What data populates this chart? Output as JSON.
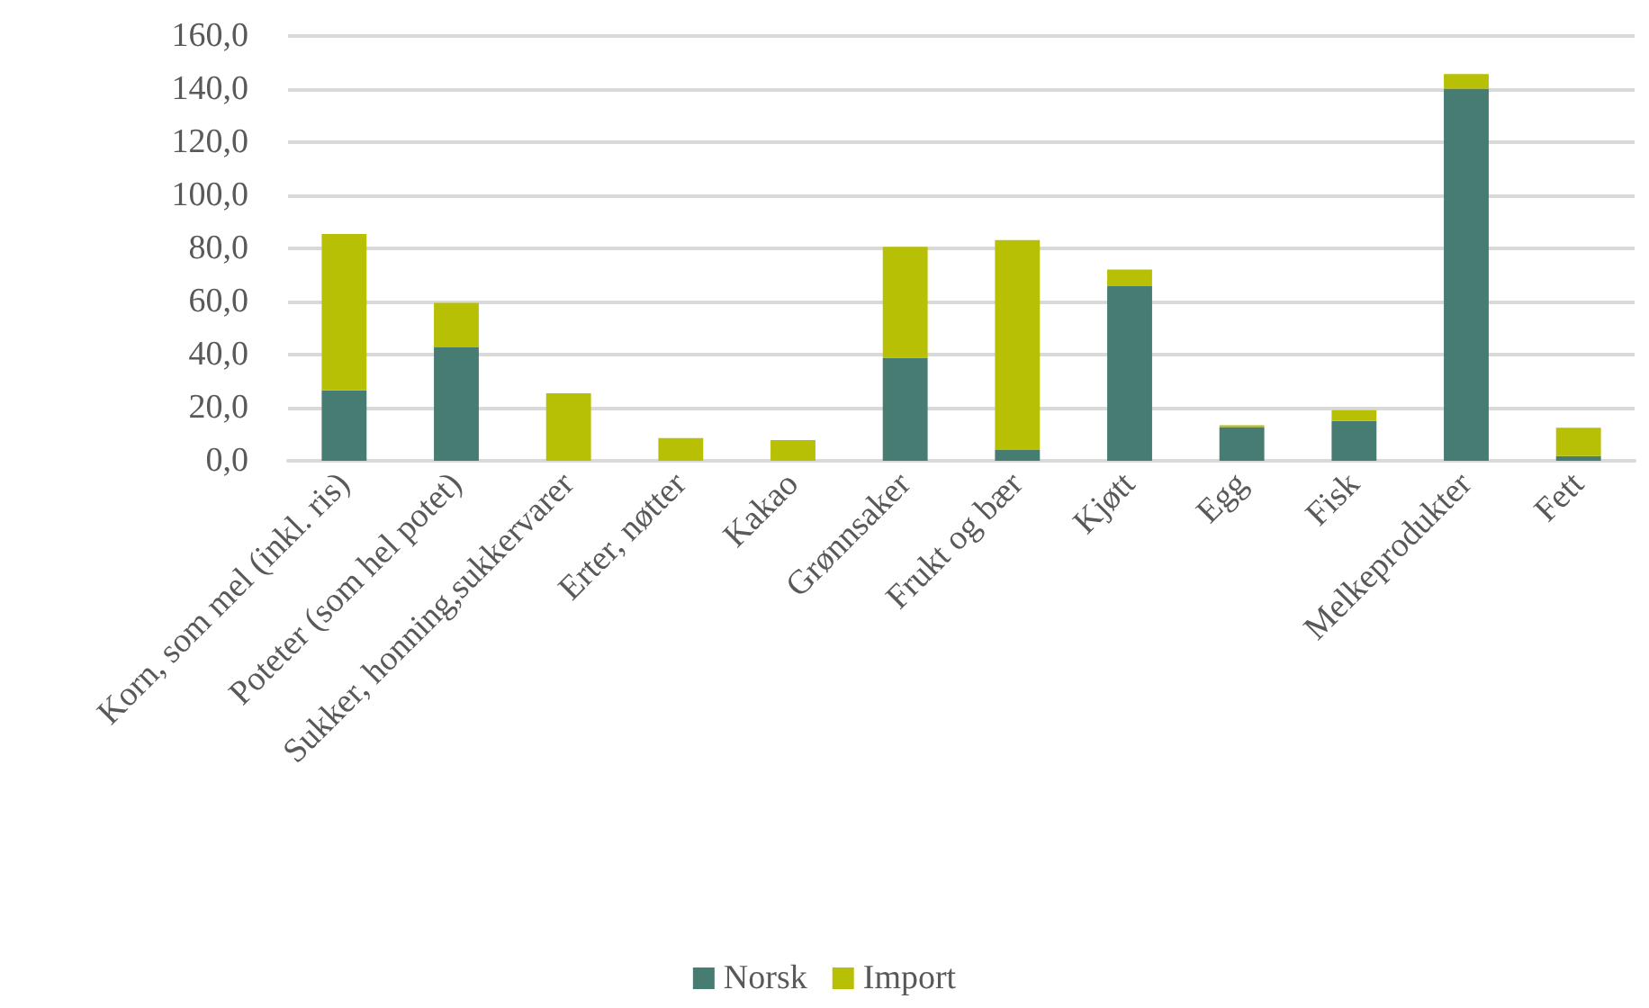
{
  "chart_data": {
    "type": "bar",
    "stacked": true,
    "categories": [
      "Korn, som mel (inkl. ris)",
      "Poteter (som hel potet)",
      "Sukker, honning,sukkervarer",
      "Erter, nøtter",
      "Kakao",
      "Grønnsaker",
      "Frukt og bær",
      "Kjøtt",
      "Egg",
      "Fisk",
      "Melkeprodukter",
      "Fett"
    ],
    "series": [
      {
        "name": "Norsk",
        "color": "#467c72",
        "values": [
          26.5,
          42.7,
          0,
          0,
          0,
          38.8,
          4.1,
          65.8,
          12.7,
          15.0,
          140.2,
          1.8
        ]
      },
      {
        "name": "Import",
        "color": "#b8c006",
        "values": [
          58.9,
          16.8,
          25.4,
          8.6,
          7.8,
          41.8,
          79.0,
          6.2,
          0.7,
          4.1,
          5.5,
          10.7
        ]
      }
    ],
    "ylim": [
      0,
      160
    ],
    "yticks": [
      {
        "value": 0,
        "label": "0,0"
      },
      {
        "value": 20,
        "label": "20,0"
      },
      {
        "value": 40,
        "label": "40,0"
      },
      {
        "value": 60,
        "label": "60,0"
      },
      {
        "value": 80,
        "label": "80,0"
      },
      {
        "value": 100,
        "label": "100,0"
      },
      {
        "value": 120,
        "label": "120,0"
      },
      {
        "value": 140,
        "label": "140,0"
      },
      {
        "value": 160,
        "label": "160,0"
      }
    ],
    "grid": "y",
    "legend": "bottom"
  }
}
